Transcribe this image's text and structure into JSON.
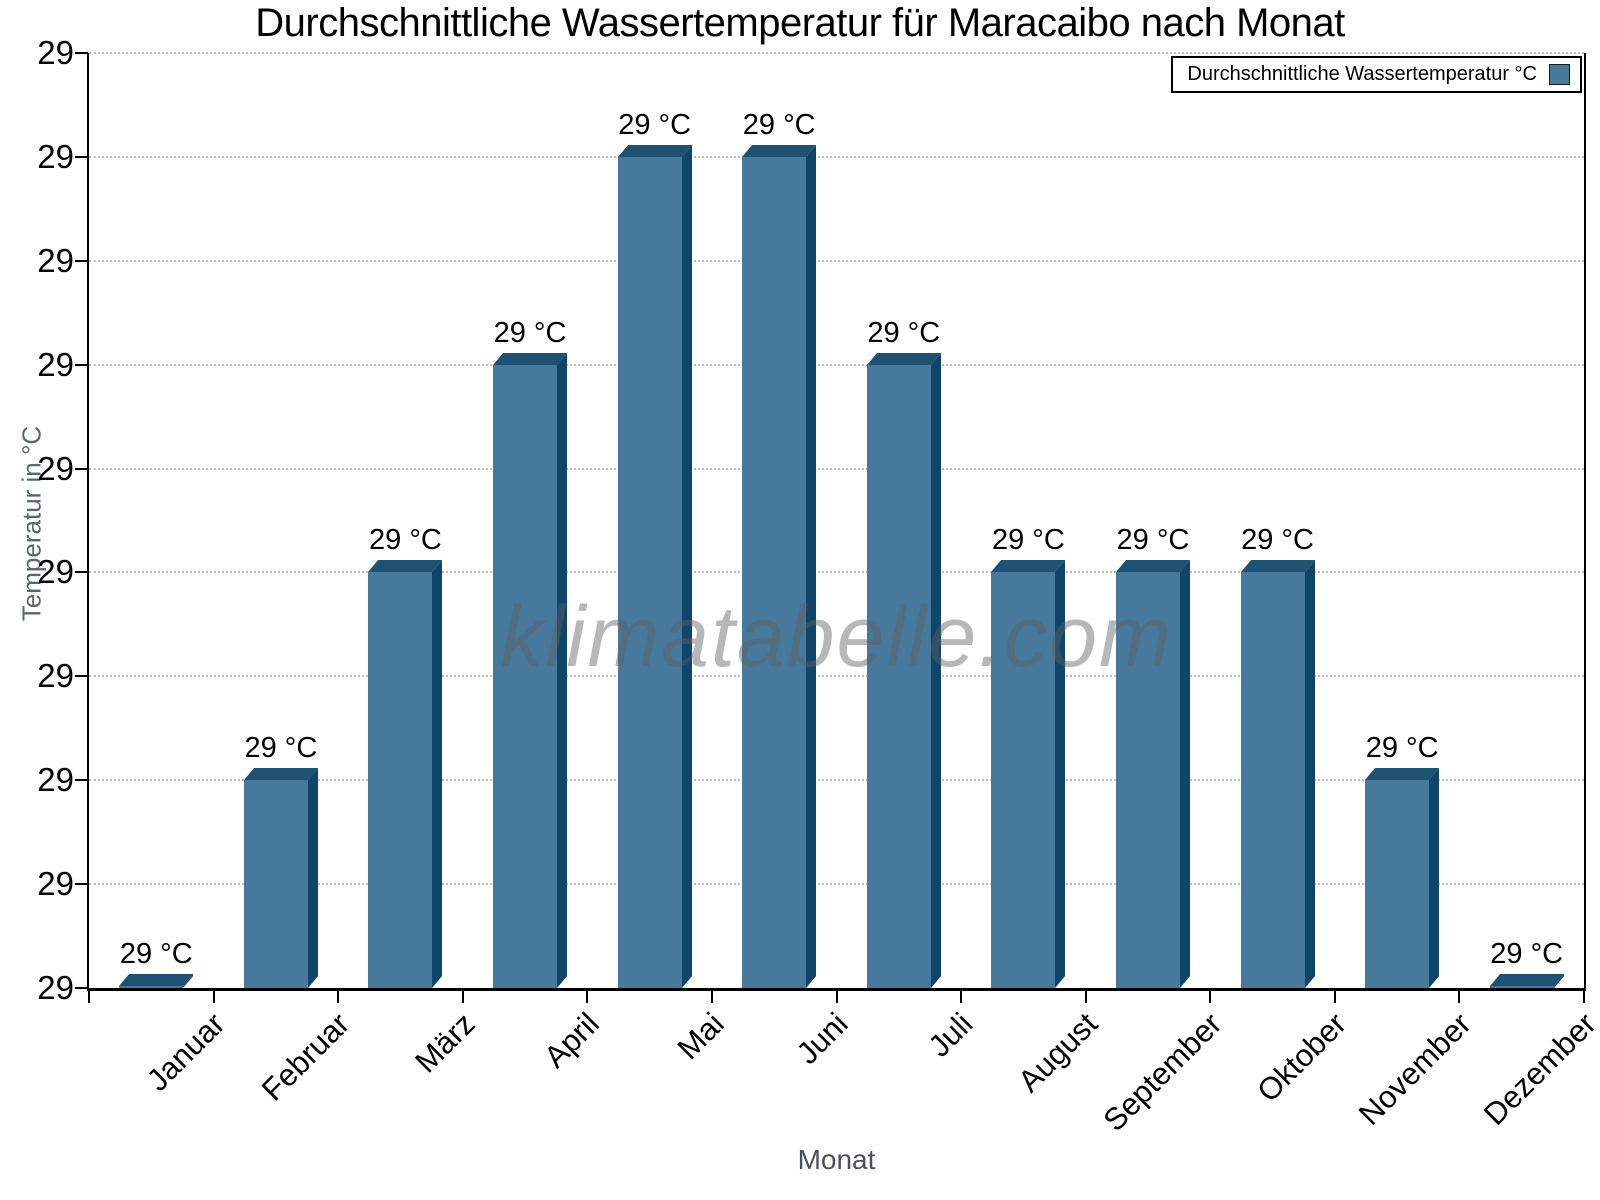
{
  "title": "Durchschnittliche Wassertemperatur für Maracaibo nach Monat",
  "watermark": "klimatabelle.com",
  "legend": {
    "label": "Durchschnittliche Wassertemperatur °C",
    "swatch_color": "#47799C",
    "position": "top-right"
  },
  "axes": {
    "x_title": "Monat",
    "y_title": "Temperatur in °C",
    "y_tick_labels": [
      "29",
      "29",
      "29",
      "29",
      "29",
      "29",
      "29",
      "29",
      "29",
      "29"
    ],
    "grid": "horizontal dotted"
  },
  "chart_data": {
    "type": "bar",
    "title": "Durchschnittliche Wassertemperatur für Maracaibo nach Monat",
    "xlabel": "Monat",
    "ylabel": "Temperatur in °C",
    "categories": [
      "Januar",
      "Februar",
      "März",
      "April",
      "Mai",
      "Juni",
      "Juli",
      "August",
      "September",
      "Oktober",
      "November",
      "Dezember"
    ],
    "value_labels": [
      "29 °C",
      "29 °C",
      "29 °C",
      "29 °C",
      "29 °C",
      "29 °C",
      "29 °C",
      "29 °C",
      "29 °C",
      "29 °C",
      "29 °C",
      "29 °C"
    ],
    "displayed_value_celsius": 29,
    "bar_height_gridline_units": [
      0,
      2,
      4,
      6,
      8,
      8,
      6,
      4,
      4,
      4,
      2,
      0
    ],
    "y_gridline_intervals": 9,
    "legend_entries": [
      "Durchschnittliche Wassertemperatur °C"
    ],
    "legend_position": "top-right",
    "colors": {
      "bar_front": "#47799C",
      "bar_side": "#10456A",
      "bar_top": "#1D5272",
      "gridline": "#bcbcbc",
      "axis": "#000000",
      "axis_title": "#5A6570"
    }
  }
}
